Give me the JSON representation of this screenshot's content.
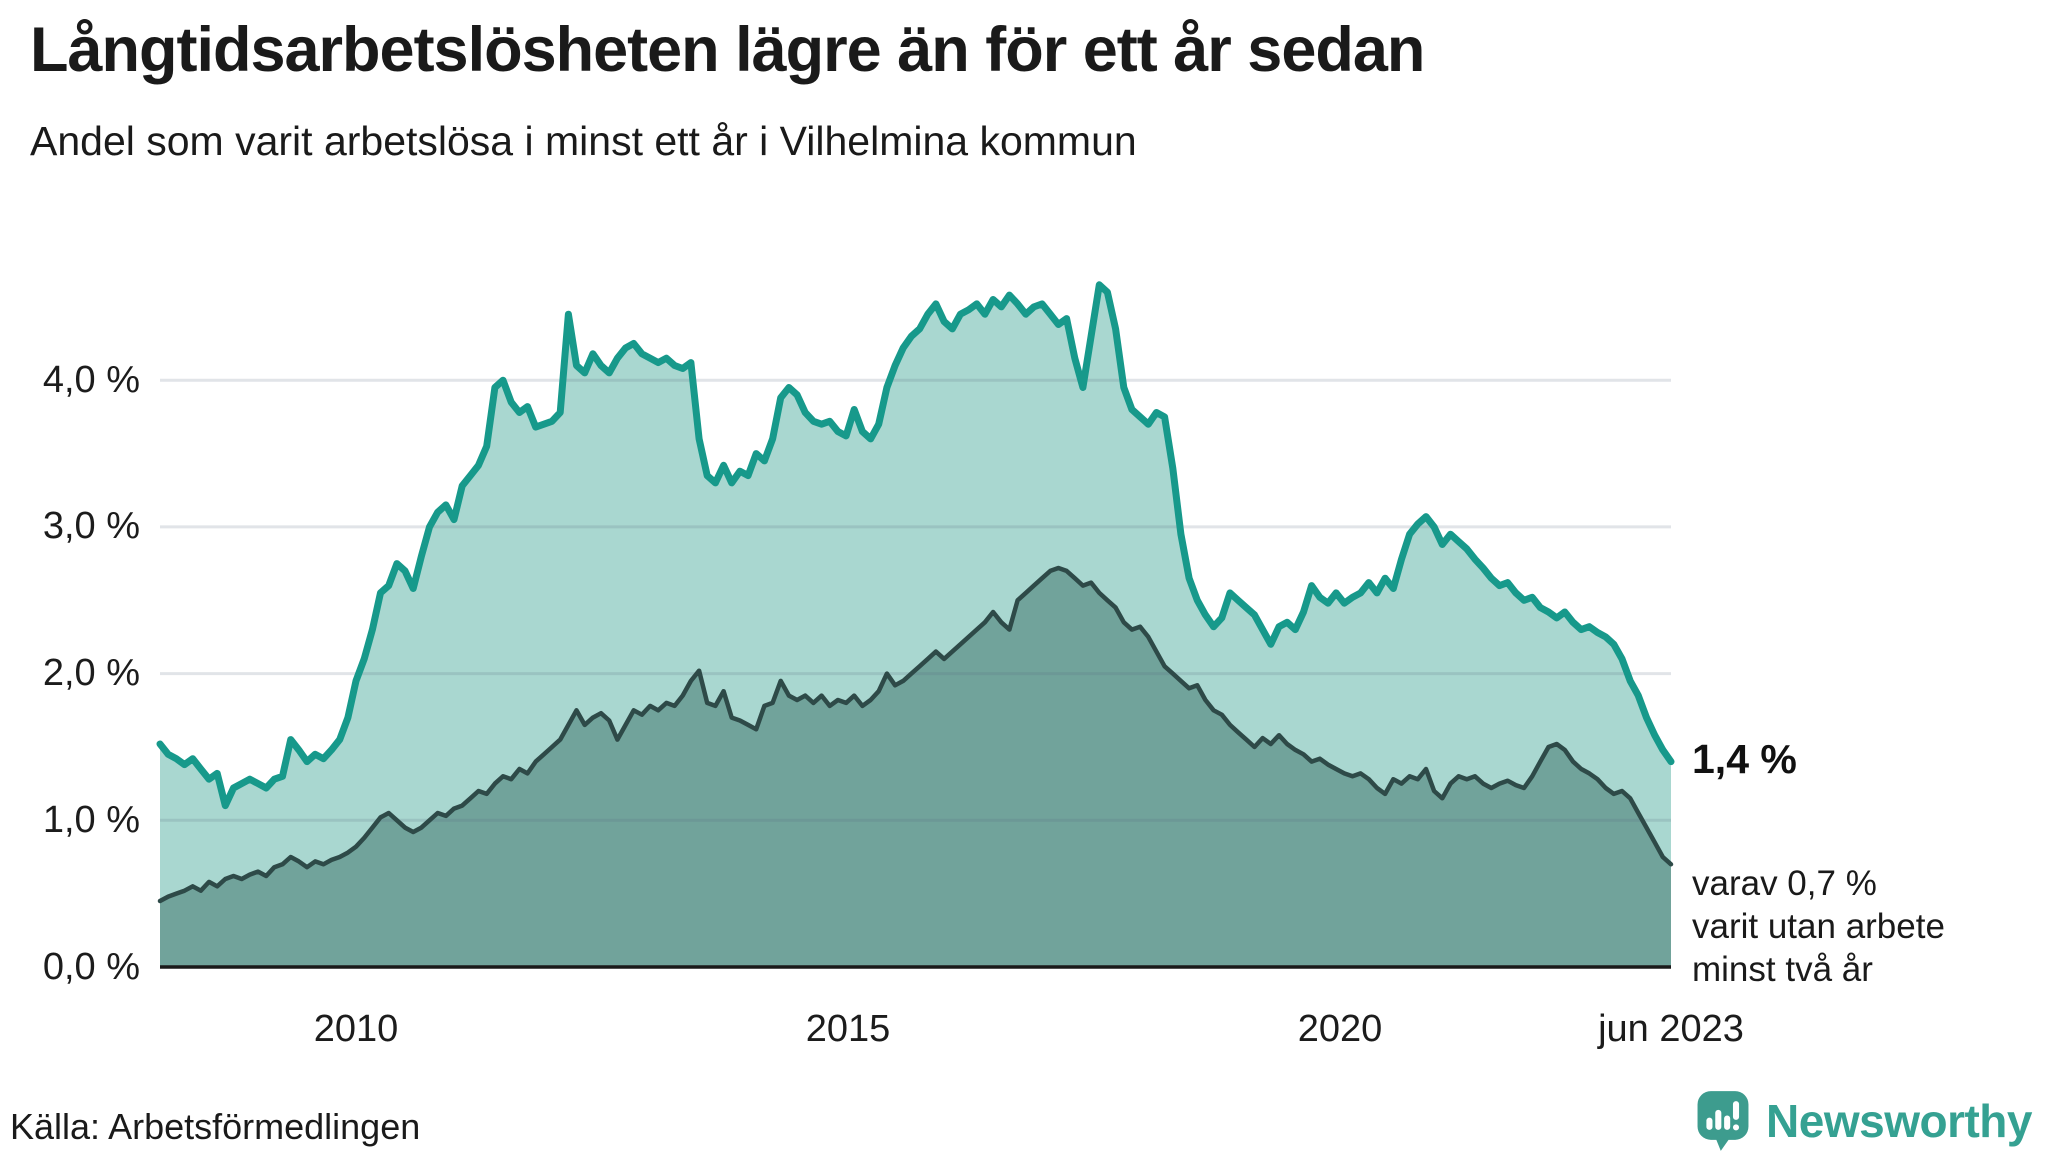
{
  "header": {
    "title": "Långtidsarbetslösheten lägre än för ett år sedan",
    "subtitle": "Andel som varit arbetslösa i minst ett år i Vilhelmina kommun"
  },
  "chart_data": {
    "type": "area",
    "title": "Långtidsarbetslösheten lägre än för ett år sedan",
    "subtitle": "Andel som varit arbetslösa i minst ett år i Vilhelmina kommun",
    "unit": "%",
    "x_monthly_start": "2008-01",
    "x_monthly_end": "2023-06",
    "x_tick_labels": [
      "2010",
      "2015",
      "2020",
      "jun 2023"
    ],
    "y_tick_labels": [
      "0,0 %",
      "1,0 %",
      "2,0 %",
      "3,0 %",
      "4,0 %"
    ],
    "ylim": [
      0,
      5.0
    ],
    "grid": "horizontal",
    "legend_position": "none",
    "series": [
      {
        "name": "Arbetslösa minst ett år",
        "line_color": "#17998b",
        "fill_color": "#a9d7d0",
        "end_value": 1.4,
        "values": [
          1.52,
          1.45,
          1.42,
          1.38,
          1.42,
          1.35,
          1.28,
          1.32,
          1.1,
          1.22,
          1.25,
          1.28,
          1.25,
          1.22,
          1.28,
          1.3,
          1.55,
          1.48,
          1.4,
          1.45,
          1.42,
          1.48,
          1.55,
          1.7,
          1.95,
          2.1,
          2.3,
          2.55,
          2.6,
          2.75,
          2.7,
          2.58,
          2.8,
          3.0,
          3.1,
          3.15,
          3.05,
          3.28,
          3.35,
          3.42,
          3.55,
          3.95,
          4.0,
          3.85,
          3.78,
          3.82,
          3.68,
          3.7,
          3.72,
          3.78,
          4.45,
          4.1,
          4.05,
          4.18,
          4.1,
          4.05,
          4.15,
          4.22,
          4.25,
          4.18,
          4.15,
          4.12,
          4.15,
          4.1,
          4.08,
          4.12,
          3.6,
          3.35,
          3.3,
          3.42,
          3.3,
          3.38,
          3.35,
          3.5,
          3.45,
          3.6,
          3.88,
          3.95,
          3.9,
          3.78,
          3.72,
          3.7,
          3.72,
          3.65,
          3.62,
          3.8,
          3.65,
          3.6,
          3.7,
          3.95,
          4.1,
          4.22,
          4.3,
          4.35,
          4.45,
          4.52,
          4.4,
          4.35,
          4.45,
          4.48,
          4.52,
          4.45,
          4.55,
          4.5,
          4.58,
          4.52,
          4.45,
          4.5,
          4.52,
          4.45,
          4.38,
          4.42,
          4.15,
          3.95,
          4.3,
          4.65,
          4.6,
          4.35,
          3.95,
          3.8,
          3.75,
          3.7,
          3.78,
          3.75,
          3.4,
          2.95,
          2.65,
          2.5,
          2.4,
          2.32,
          2.38,
          2.55,
          2.5,
          2.45,
          2.4,
          2.3,
          2.2,
          2.32,
          2.35,
          2.3,
          2.42,
          2.6,
          2.52,
          2.48,
          2.55,
          2.48,
          2.52,
          2.55,
          2.62,
          2.55,
          2.65,
          2.58,
          2.78,
          2.95,
          3.02,
          3.07,
          3.0,
          2.88,
          2.95,
          2.9,
          2.85,
          2.78,
          2.72,
          2.65,
          2.6,
          2.62,
          2.55,
          2.5,
          2.52,
          2.45,
          2.42,
          2.38,
          2.42,
          2.35,
          2.3,
          2.32,
          2.28,
          2.25,
          2.2,
          2.1,
          1.95,
          1.85,
          1.7,
          1.58,
          1.48,
          1.4
        ]
      },
      {
        "name": "varav utan arbete minst två år",
        "line_color": "#2e4a48",
        "fill_color": "#71a39b",
        "end_value": 0.7,
        "values": [
          0.45,
          0.48,
          0.5,
          0.52,
          0.55,
          0.52,
          0.58,
          0.55,
          0.6,
          0.62,
          0.6,
          0.63,
          0.65,
          0.62,
          0.68,
          0.7,
          0.75,
          0.72,
          0.68,
          0.72,
          0.7,
          0.73,
          0.75,
          0.78,
          0.82,
          0.88,
          0.95,
          1.02,
          1.05,
          1.0,
          0.95,
          0.92,
          0.95,
          1.0,
          1.05,
          1.03,
          1.08,
          1.1,
          1.15,
          1.2,
          1.18,
          1.25,
          1.3,
          1.28,
          1.35,
          1.32,
          1.4,
          1.45,
          1.5,
          1.55,
          1.65,
          1.75,
          1.65,
          1.7,
          1.73,
          1.68,
          1.55,
          1.65,
          1.75,
          1.72,
          1.78,
          1.75,
          1.8,
          1.78,
          1.85,
          1.95,
          2.02,
          1.8,
          1.78,
          1.88,
          1.7,
          1.68,
          1.65,
          1.62,
          1.78,
          1.8,
          1.95,
          1.85,
          1.82,
          1.85,
          1.8,
          1.85,
          1.78,
          1.82,
          1.8,
          1.85,
          1.78,
          1.82,
          1.88,
          2.0,
          1.92,
          1.95,
          2.0,
          2.05,
          2.1,
          2.15,
          2.1,
          2.15,
          2.2,
          2.25,
          2.3,
          2.35,
          2.42,
          2.35,
          2.3,
          2.5,
          2.55,
          2.6,
          2.65,
          2.7,
          2.72,
          2.7,
          2.65,
          2.6,
          2.62,
          2.55,
          2.5,
          2.45,
          2.35,
          2.3,
          2.32,
          2.25,
          2.15,
          2.05,
          2.0,
          1.95,
          1.9,
          1.92,
          1.82,
          1.75,
          1.72,
          1.65,
          1.6,
          1.55,
          1.5,
          1.56,
          1.52,
          1.58,
          1.52,
          1.48,
          1.45,
          1.4,
          1.42,
          1.38,
          1.35,
          1.32,
          1.3,
          1.32,
          1.28,
          1.22,
          1.18,
          1.28,
          1.25,
          1.3,
          1.28,
          1.35,
          1.2,
          1.15,
          1.25,
          1.3,
          1.28,
          1.3,
          1.25,
          1.22,
          1.25,
          1.27,
          1.24,
          1.22,
          1.3,
          1.4,
          1.5,
          1.52,
          1.48,
          1.4,
          1.35,
          1.32,
          1.28,
          1.22,
          1.18,
          1.2,
          1.15,
          1.05,
          0.95,
          0.85,
          0.75,
          0.7
        ]
      }
    ],
    "end_labels": {
      "primary": "1,4 %",
      "secondary": [
        "varav 0,7 %",
        "varit utan arbete",
        "minst två år"
      ]
    }
  },
  "footer": {
    "source": "Källa: Arbetsförmedlingen",
    "brand": "Newsworthy"
  },
  "colors": {
    "accent_teal": "#17998b",
    "light_fill": "#a9d7d0",
    "dark_fill": "#71a39b",
    "dark_line": "#2e4a48",
    "gridline": "#e6e8eb",
    "baseline": "#1a1a1a",
    "brand_teal": "#35a192",
    "text": "#1a1a1a"
  }
}
